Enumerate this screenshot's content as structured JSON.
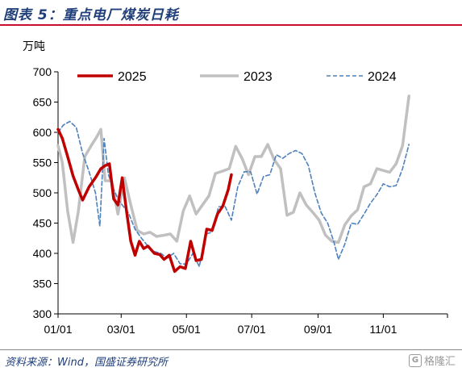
{
  "header": {
    "title": "图表 5：重点电厂煤炭日耗"
  },
  "footer": {
    "source": "资料来源：Wind，国盛证券研究所",
    "watermark": "格隆汇"
  },
  "colors": {
    "s2025": "#c00000",
    "s2023": "#c0c0c0",
    "s2024": "#4f81bd",
    "title": "#1f3e7a",
    "rule": "#c8102e"
  },
  "icons": {
    "watermark_logo": "watermark-logo-icon"
  },
  "chart_data": {
    "type": "line",
    "title": "",
    "ylabel": "万吨",
    "xlabel": "",
    "ylim": [
      300,
      700
    ],
    "yticks": [
      300,
      350,
      400,
      450,
      500,
      550,
      600,
      650,
      700
    ],
    "xlim_day": [
      1,
      365
    ],
    "xticks": [
      {
        "label": "01/01",
        "day": 1
      },
      {
        "label": "03/01",
        "day": 60
      },
      {
        "label": "05/01",
        "day": 121
      },
      {
        "label": "07/01",
        "day": 182
      },
      {
        "label": "09/01",
        "day": 244
      },
      {
        "label": "11/01",
        "day": 305
      }
    ],
    "legend_position": "top",
    "grid": false,
    "series": [
      {
        "name": "2025",
        "style": "solid-thick",
        "points": [
          [
            "01/01",
            605
          ],
          [
            "01/05",
            590
          ],
          [
            "01/10",
            560
          ],
          [
            "01/15",
            528
          ],
          [
            "01/20",
            505
          ],
          [
            "01/24",
            488
          ],
          [
            "01/30",
            510
          ],
          [
            "02/05",
            525
          ],
          [
            "02/10",
            540
          ],
          [
            "02/14",
            545
          ],
          [
            "02/18",
            548
          ],
          [
            "02/22",
            490
          ],
          [
            "02/26",
            480
          ],
          [
            "03/02",
            525
          ],
          [
            "03/06",
            470
          ],
          [
            "03/10",
            420
          ],
          [
            "03/14",
            397
          ],
          [
            "03/18",
            420
          ],
          [
            "03/22",
            408
          ],
          [
            "03/26",
            412
          ],
          [
            "04/01",
            400
          ],
          [
            "04/06",
            398
          ],
          [
            "04/10",
            390
          ],
          [
            "04/15",
            397
          ],
          [
            "04/20",
            370
          ],
          [
            "04/25",
            378
          ],
          [
            "04/30",
            375
          ],
          [
            "05/05",
            420
          ],
          [
            "05/10",
            388
          ],
          [
            "05/15",
            390
          ],
          [
            "05/20",
            440
          ],
          [
            "05/25",
            438
          ],
          [
            "05/30",
            465
          ],
          [
            "06/04",
            478
          ],
          [
            "06/09",
            505
          ],
          [
            "06/12",
            530
          ]
        ]
      },
      {
        "name": "2023",
        "style": "solid-thick",
        "points": [
          [
            "01/01",
            578
          ],
          [
            "01/05",
            550
          ],
          [
            "01/10",
            470
          ],
          [
            "01/15",
            418
          ],
          [
            "01/20",
            470
          ],
          [
            "01/26",
            560
          ],
          [
            "02/01",
            578
          ],
          [
            "02/06",
            592
          ],
          [
            "02/10",
            605
          ],
          [
            "02/14",
            520
          ],
          [
            "02/20",
            520
          ],
          [
            "02/26",
            465
          ],
          [
            "03/04",
            525
          ],
          [
            "03/10",
            480
          ],
          [
            "03/16",
            438
          ],
          [
            "03/22",
            432
          ],
          [
            "03/28",
            435
          ],
          [
            "04/03",
            428
          ],
          [
            "04/10",
            430
          ],
          [
            "04/16",
            432
          ],
          [
            "04/22",
            420
          ],
          [
            "04/28",
            470
          ],
          [
            "05/04",
            495
          ],
          [
            "05/10",
            465
          ],
          [
            "05/16",
            480
          ],
          [
            "05/22",
            495
          ],
          [
            "05/28",
            532
          ],
          [
            "06/04",
            536
          ],
          [
            "06/10",
            540
          ],
          [
            "06/16",
            577
          ],
          [
            "06/22",
            557
          ],
          [
            "06/28",
            530
          ],
          [
            "07/04",
            560
          ],
          [
            "07/10",
            560
          ],
          [
            "07/16",
            580
          ],
          [
            "07/22",
            555
          ],
          [
            "07/28",
            540
          ],
          [
            "08/03",
            463
          ],
          [
            "08/09",
            468
          ],
          [
            "08/15",
            500
          ],
          [
            "08/21",
            480
          ],
          [
            "08/27",
            468
          ],
          [
            "09/02",
            455
          ],
          [
            "09/08",
            430
          ],
          [
            "09/14",
            420
          ],
          [
            "09/20",
            418
          ],
          [
            "09/26",
            447
          ],
          [
            "10/02",
            462
          ],
          [
            "10/08",
            472
          ],
          [
            "10/14",
            510
          ],
          [
            "10/20",
            515
          ],
          [
            "10/26",
            540
          ],
          [
            "11/01",
            537
          ],
          [
            "11/07",
            534
          ],
          [
            "11/13",
            548
          ],
          [
            "11/19",
            578
          ],
          [
            "11/25",
            660
          ]
        ]
      },
      {
        "name": "2024",
        "style": "dashed",
        "points": [
          [
            "01/01",
            600
          ],
          [
            "01/06",
            612
          ],
          [
            "01/12",
            618
          ],
          [
            "01/18",
            608
          ],
          [
            "01/24",
            565
          ],
          [
            "01/30",
            535
          ],
          [
            "02/05",
            500
          ],
          [
            "02/09",
            445
          ],
          [
            "02/13",
            590
          ],
          [
            "02/17",
            530
          ],
          [
            "02/21",
            510
          ],
          [
            "02/26",
            490
          ],
          [
            "03/02",
            480
          ],
          [
            "03/08",
            466
          ],
          [
            "03/14",
            440
          ],
          [
            "03/20",
            425
          ],
          [
            "03/26",
            412
          ],
          [
            "04/01",
            403
          ],
          [
            "04/07",
            400
          ],
          [
            "04/13",
            392
          ],
          [
            "04/19",
            400
          ],
          [
            "04/25",
            383
          ],
          [
            "05/01",
            382
          ],
          [
            "05/07",
            400
          ],
          [
            "05/13",
            378
          ],
          [
            "05/19",
            432
          ],
          [
            "05/25",
            435
          ],
          [
            "05/31",
            477
          ],
          [
            "06/06",
            478
          ],
          [
            "06/12",
            455
          ],
          [
            "06/18",
            510
          ],
          [
            "06/24",
            535
          ],
          [
            "06/30",
            535
          ],
          [
            "07/06",
            498
          ],
          [
            "07/12",
            527
          ],
          [
            "07/18",
            530
          ],
          [
            "07/24",
            563
          ],
          [
            "07/30",
            557
          ],
          [
            "08/05",
            565
          ],
          [
            "08/11",
            570
          ],
          [
            "08/17",
            565
          ],
          [
            "08/23",
            545
          ],
          [
            "08/29",
            500
          ],
          [
            "09/04",
            467
          ],
          [
            "09/10",
            450
          ],
          [
            "09/16",
            418
          ],
          [
            "09/20",
            390
          ],
          [
            "09/26",
            415
          ],
          [
            "10/02",
            450
          ],
          [
            "10/08",
            448
          ],
          [
            "10/14",
            465
          ],
          [
            "10/20",
            483
          ],
          [
            "10/26",
            497
          ],
          [
            "11/01",
            515
          ],
          [
            "11/07",
            510
          ],
          [
            "11/13",
            512
          ],
          [
            "11/19",
            540
          ],
          [
            "11/25",
            580
          ]
        ]
      }
    ]
  }
}
